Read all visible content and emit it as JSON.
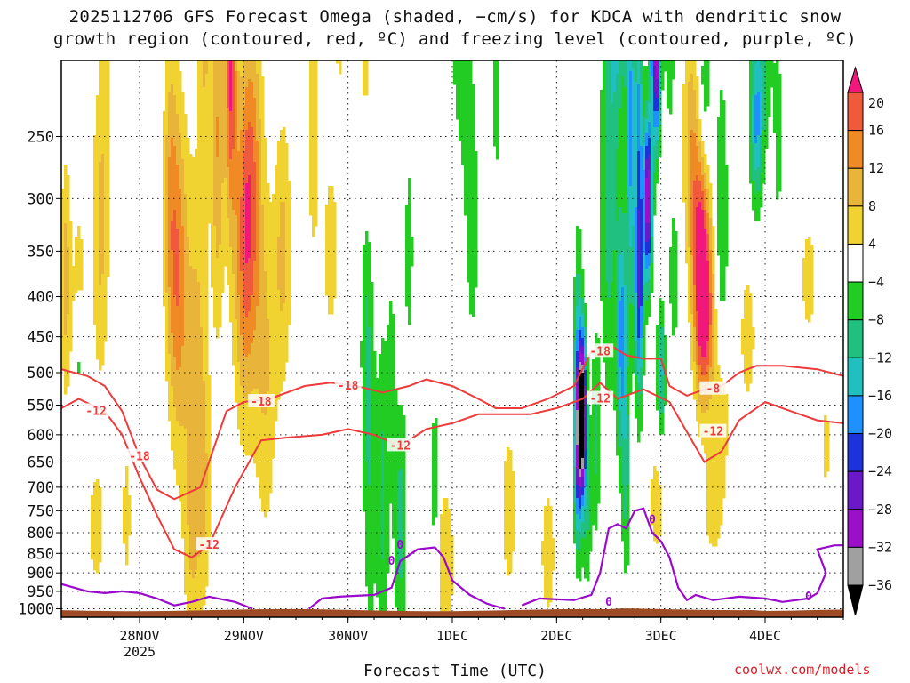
{
  "title": {
    "line1": "2025112706 GFS Forecast Omega (shaded, −cm/s) for KDCA with dendritic snow",
    "line2": "growth region (contoured, red, ºC) and freezing level (contoured, purple, ºC)"
  },
  "watermark": "coolwx.com/models",
  "chart_data": {
    "type": "heatmap",
    "title": "2025112706 GFS Forecast Omega (shaded, −cm/s) for KDCA with dendritic snow growth region (contoured, red, ºC) and freezing level (contoured, purple, ºC)",
    "xlabel": "Forecast Time (UTC)",
    "ylabel": "",
    "x_ticks": [
      {
        "label": "28NOV",
        "sub": "2025",
        "hour": 18
      },
      {
        "label": "29NOV",
        "sub": "",
        "hour": 42
      },
      {
        "label": "30NOV",
        "sub": "",
        "hour": 66
      },
      {
        "label": "1DEC",
        "sub": "",
        "hour": 90
      },
      {
        "label": "2DEC",
        "sub": "",
        "hour": 114
      },
      {
        "label": "3DEC",
        "sub": "",
        "hour": 138
      },
      {
        "label": "4DEC",
        "sub": "",
        "hour": 162
      }
    ],
    "xlim_hours": [
      0,
      180
    ],
    "y_ticks": [
      250,
      300,
      350,
      400,
      450,
      500,
      550,
      600,
      650,
      700,
      750,
      800,
      850,
      900,
      950,
      1000
    ],
    "ylim_hpa": [
      200,
      1025
    ],
    "y_scale": "log-pressure",
    "grid": true,
    "colorbar": {
      "values": [
        20,
        16,
        12,
        8,
        4,
        -4,
        -8,
        -12,
        -16,
        -20,
        -24,
        -28,
        -32,
        -36
      ],
      "colors": [
        "#f0187a",
        "#f05a3c",
        "#f08a24",
        "#e8b43a",
        "#f0d230",
        "#ffffff",
        "#22cc22",
        "#20c080",
        "#20c0c0",
        "#1e90ff",
        "#1e32dc",
        "#6a18c8",
        "#9a10c8",
        "#a0a0a0",
        "#000000"
      ]
    },
    "contour_labels": {
      "dgz": [
        "-18",
        "-12",
        "-18",
        "-12",
        "-18",
        "-12",
        "-18",
        "-12",
        "-8",
        "-12"
      ],
      "freezing": [
        "0",
        "0",
        "0",
        "0",
        "0"
      ]
    },
    "dgz_lines": [
      {
        "level": -12,
        "points": [
          [
            0,
            555
          ],
          [
            4,
            540
          ],
          [
            10,
            560
          ],
          [
            14,
            600
          ],
          [
            18,
            680
          ],
          [
            22,
            760
          ],
          [
            26,
            840
          ],
          [
            30,
            860
          ],
          [
            34,
            830
          ],
          [
            40,
            700
          ],
          [
            46,
            610
          ],
          [
            52,
            605
          ],
          [
            60,
            600
          ],
          [
            66,
            590
          ],
          [
            72,
            600
          ],
          [
            78,
            620
          ],
          [
            84,
            590
          ],
          [
            90,
            580
          ],
          [
            96,
            565
          ],
          [
            102,
            565
          ],
          [
            108,
            565
          ],
          [
            114,
            555
          ],
          [
            120,
            540
          ],
          [
            124,
            515
          ],
          [
            128,
            540
          ],
          [
            134,
            525
          ],
          [
            140,
            545
          ],
          [
            144,
            595
          ],
          [
            148,
            650
          ],
          [
            152,
            630
          ],
          [
            156,
            575
          ],
          [
            162,
            545
          ],
          [
            168,
            560
          ],
          [
            174,
            575
          ],
          [
            180,
            580
          ]
        ]
      },
      {
        "level": -18,
        "points": [
          [
            0,
            495
          ],
          [
            6,
            505
          ],
          [
            10,
            520
          ],
          [
            14,
            560
          ],
          [
            18,
            640
          ],
          [
            22,
            705
          ],
          [
            26,
            725
          ],
          [
            32,
            700
          ],
          [
            38,
            560
          ],
          [
            42,
            545
          ],
          [
            48,
            540
          ],
          [
            56,
            520
          ],
          [
            62,
            515
          ],
          [
            68,
            520
          ],
          [
            74,
            530
          ],
          [
            80,
            520
          ],
          [
            84,
            510
          ],
          [
            90,
            520
          ],
          [
            96,
            540
          ],
          [
            100,
            555
          ],
          [
            106,
            555
          ],
          [
            112,
            540
          ],
          [
            118,
            520
          ],
          [
            122,
            470
          ],
          [
            126,
            460
          ],
          [
            130,
            475
          ],
          [
            134,
            480
          ],
          [
            138,
            480
          ],
          [
            140,
            520
          ],
          [
            144,
            535
          ],
          [
            148,
            525
          ],
          [
            152,
            520
          ],
          [
            156,
            500
          ],
          [
            160,
            490
          ],
          [
            166,
            490
          ],
          [
            174,
            495
          ],
          [
            180,
            505
          ]
        ]
      }
    ],
    "freezing_lines": [
      {
        "level": 0,
        "points": [
          [
            0,
            930
          ],
          [
            6,
            950
          ],
          [
            10,
            955
          ],
          [
            14,
            950
          ],
          [
            18,
            955
          ],
          [
            22,
            970
          ],
          [
            26,
            990
          ],
          [
            30,
            980
          ],
          [
            34,
            965
          ],
          [
            36,
            970
          ],
          [
            40,
            980
          ],
          [
            44,
            1000
          ]
        ]
      },
      {
        "level": 0,
        "points": [
          [
            57,
            1000
          ],
          [
            60,
            970
          ],
          [
            64,
            965
          ],
          [
            72,
            960
          ],
          [
            76,
            940
          ],
          [
            78,
            870
          ],
          [
            82,
            840
          ],
          [
            86,
            835
          ],
          [
            88,
            860
          ],
          [
            90,
            920
          ],
          [
            94,
            960
          ],
          [
            98,
            985
          ],
          [
            102,
            1000
          ]
        ]
      },
      {
        "level": 0,
        "points": [
          [
            106,
            990
          ],
          [
            110,
            970
          ],
          [
            118,
            975
          ],
          [
            122,
            960
          ],
          [
            124,
            900
          ],
          [
            126,
            790
          ],
          [
            128,
            780
          ],
          [
            130,
            790
          ],
          [
            132,
            750
          ],
          [
            134,
            745
          ],
          [
            136,
            800
          ],
          [
            138,
            820
          ],
          [
            140,
            860
          ],
          [
            142,
            940
          ],
          [
            144,
            975
          ],
          [
            146,
            960
          ],
          [
            150,
            975
          ],
          [
            156,
            965
          ],
          [
            162,
            970
          ],
          [
            166,
            980
          ],
          [
            172,
            970
          ],
          [
            174,
            955
          ],
          [
            176,
            900
          ],
          [
            174,
            840
          ],
          [
            178,
            830
          ],
          [
            180,
            830
          ]
        ]
      }
    ]
  }
}
